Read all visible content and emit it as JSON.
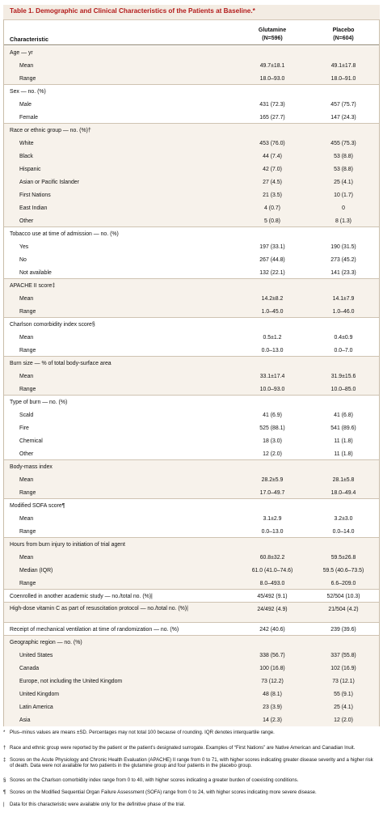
{
  "title": "Table 1. Demographic and Clinical Characteristics of the Patients at Baseline.*",
  "columns": {
    "characteristic": "Characteristic",
    "glutamine_line1": "Glutamine",
    "glutamine_line2": "(N=596)",
    "placebo_line1": "Placebo",
    "placebo_line2": "(N=604)"
  },
  "rows": [
    {
      "label": "Age — yr",
      "type": "cat"
    },
    {
      "label": "Mean",
      "g": "49.7±18.1",
      "p": "49.1±17.8",
      "type": "sub"
    },
    {
      "label": "Range",
      "g": "18.0–93.0",
      "p": "18.0–91.0",
      "type": "sub"
    },
    {
      "label": "Sex — no. (%)",
      "type": "cat"
    },
    {
      "label": "Male",
      "g": "431 (72.3)",
      "p": "457 (75.7)",
      "type": "sub"
    },
    {
      "label": "Female",
      "g": "165 (27.7)",
      "p": "147 (24.3)",
      "type": "sub"
    },
    {
      "label": "Race or ethnic group — no. (%)†",
      "type": "cat"
    },
    {
      "label": "White",
      "g": "453 (76.0)",
      "p": "455 (75.3)",
      "type": "sub"
    },
    {
      "label": "Black",
      "g": "44 (7.4)",
      "p": "53 (8.8)",
      "type": "sub"
    },
    {
      "label": "Hispanic",
      "g": "42 (7.0)",
      "p": "53 (8.8)",
      "type": "sub"
    },
    {
      "label": "Asian or Pacific Islander",
      "g": "27 (4.5)",
      "p": "25 (4.1)",
      "type": "sub"
    },
    {
      "label": "First Nations",
      "g": "21 (3.5)",
      "p": "10 (1.7)",
      "type": "sub"
    },
    {
      "label": "East Indian",
      "g": "4 (0.7)",
      "p": "0",
      "type": "sub"
    },
    {
      "label": "Other",
      "g": "5 (0.8)",
      "p": "8 (1.3)",
      "type": "sub"
    },
    {
      "label": "Tobacco use at time of admission — no. (%)",
      "type": "cat"
    },
    {
      "label": "Yes",
      "g": "197 (33.1)",
      "p": "190 (31.5)",
      "type": "sub"
    },
    {
      "label": "No",
      "g": "267 (44.8)",
      "p": "273 (45.2)",
      "type": "sub"
    },
    {
      "label": "Not available",
      "g": "132 (22.1)",
      "p": "141 (23.3)",
      "type": "sub"
    },
    {
      "label": "APACHE II score‡",
      "type": "cat"
    },
    {
      "label": "Mean",
      "g": "14.2±8.2",
      "p": "14.1±7.9",
      "type": "sub"
    },
    {
      "label": "Range",
      "g": "1.0–45.0",
      "p": "1.0–46.0",
      "type": "sub"
    },
    {
      "label": "Charlson comorbidity index score§",
      "type": "cat"
    },
    {
      "label": "Mean",
      "g": "0.5±1.2",
      "p": "0.4±0.9",
      "type": "sub"
    },
    {
      "label": "Range",
      "g": "0.0–13.0",
      "p": "0.0–7.0",
      "type": "sub"
    },
    {
      "label": "Burn size — % of total body-surface area",
      "type": "cat"
    },
    {
      "label": "Mean",
      "g": "33.1±17.4",
      "p": "31.9±15.6",
      "type": "sub"
    },
    {
      "label": "Range",
      "g": "10.0–93.0",
      "p": "10.0–85.0",
      "type": "sub"
    },
    {
      "label": "Type of burn — no. (%)",
      "type": "cat"
    },
    {
      "label": "Scald",
      "g": "41 (6.9)",
      "p": "41 (6.8)",
      "type": "sub"
    },
    {
      "label": "Fire",
      "g": "525 (88.1)",
      "p": "541 (89.6)",
      "type": "sub"
    },
    {
      "label": "Chemical",
      "g": "18 (3.0)",
      "p": "11 (1.8)",
      "type": "sub"
    },
    {
      "label": "Other",
      "g": "12 (2.0)",
      "p": "11 (1.8)",
      "type": "sub"
    },
    {
      "label": "Body-mass index",
      "type": "cat"
    },
    {
      "label": "Mean",
      "g": "28.2±5.9",
      "p": "28.1±5.8",
      "type": "sub"
    },
    {
      "label": "Range",
      "g": "17.0–49.7",
      "p": "18.0–49.4",
      "type": "sub"
    },
    {
      "label": "Modified SOFA score¶",
      "type": "cat"
    },
    {
      "label": "Mean",
      "g": "3.1±2.9",
      "p": "3.2±3.0",
      "type": "sub"
    },
    {
      "label": "Range",
      "g": "0.0–13.0",
      "p": "0.0–14.0",
      "type": "sub"
    },
    {
      "label": "Hours from burn injury to initiation of trial agent",
      "type": "cat"
    },
    {
      "label": "Mean",
      "g": "60.8±32.2",
      "p": "59.5±26.8",
      "type": "sub"
    },
    {
      "label": "Median (IQR)",
      "g": "61.0 (41.0–74.6)",
      "p": "59.5 (40.6–73.5)",
      "type": "sub"
    },
    {
      "label": "Range",
      "g": "8.0–493.0",
      "p": "6.6–209.0",
      "type": "sub"
    },
    {
      "label": "Coenrolled in another academic study — no./total no. (%)|",
      "g": "45/492 (9.1)",
      "p": "52/504 (10.3)",
      "type": "cat"
    },
    {
      "label": "High-dose vitamin C as part of resuscitation protocol — no./total no. (%)|",
      "g": "24/492 (4.9)",
      "p": "21/504 (4.2)",
      "type": "cat2"
    },
    {
      "label": "Receipt of mechanical ventilation at time of randomization — no. (%)",
      "g": "242 (40.6)",
      "p": "239 (39.6)",
      "type": "cat"
    },
    {
      "label": "Geographic region — no. (%)",
      "type": "cat"
    },
    {
      "label": "United States",
      "g": "338 (56.7)",
      "p": "337 (55.8)",
      "type": "sub"
    },
    {
      "label": "Canada",
      "g": "100 (16.8)",
      "p": "102 (16.9)",
      "type": "sub"
    },
    {
      "label": "Europe, not including the United Kingdom",
      "g": "73 (12.2)",
      "p": "73 (12.1)",
      "type": "sub"
    },
    {
      "label": "United Kingdom",
      "g": "48 (8.1)",
      "p": "55 (9.1)",
      "type": "sub"
    },
    {
      "label": "Latin America",
      "g": "23 (3.9)",
      "p": "25 (4.1)",
      "type": "sub"
    },
    {
      "label": "Asia",
      "g": "14 (2.3)",
      "p": "12 (2.0)",
      "type": "sub"
    }
  ],
  "footnotes": [
    {
      "mark": "*",
      "text": "Plus–minus values are means ±SD. Percentages may not total 100 because of rounding. IQR denotes interquartile range."
    },
    {
      "mark": "†",
      "text": "Race and ethnic group were reported by the patient or the patient’s designated surrogate. Examples of “First Nations” are Native American and Canadian Inuit."
    },
    {
      "mark": "‡",
      "text": "Scores on the Acute Physiology and Chronic Health Evaluation (APACHE) II range from 0 to 71, with higher scores indicating greater disease severity and a higher risk of death. Data were not available for two patients in the glutamine group and four patients in the placebo group."
    },
    {
      "mark": "§",
      "text": "Scores on the Charlson comorbidity index range from 0 to 40, with higher scores indicating a greater burden of coexisting conditions."
    },
    {
      "mark": "¶",
      "text": "Scores on the Modified Sequential Organ Failure Assessment (SOFA) range from 0 to 24, with higher scores indicating more severe disease."
    },
    {
      "mark": "|",
      "text": "Data for this characteristic were available only for the definitive phase of the trial."
    }
  ]
}
